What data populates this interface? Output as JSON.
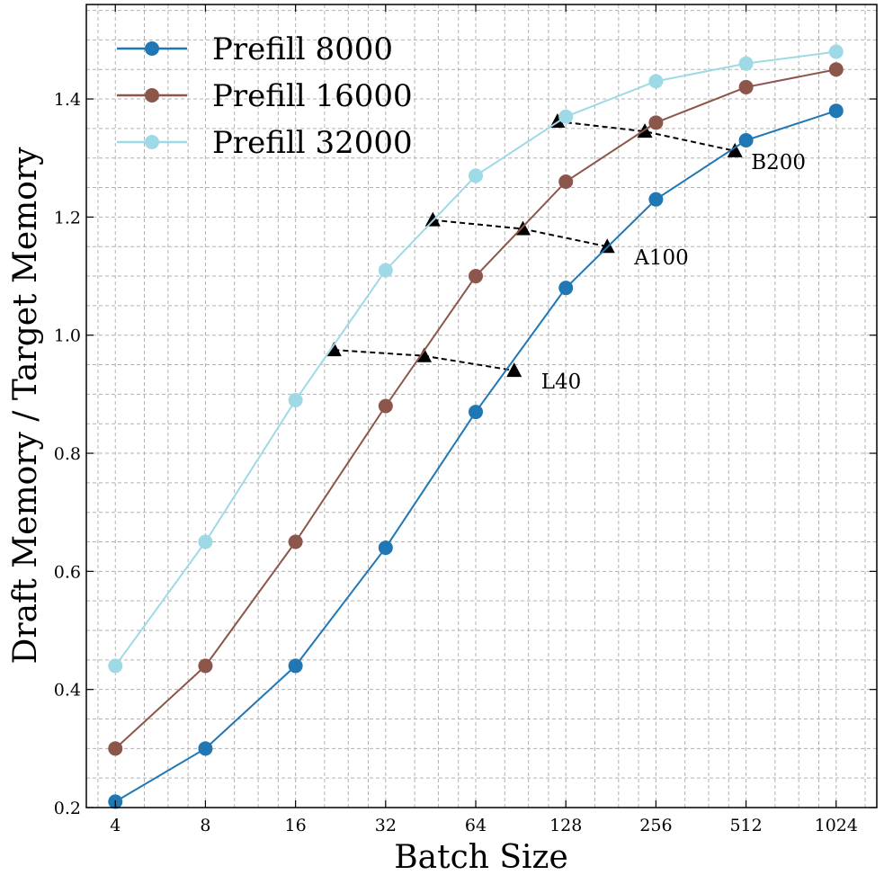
{
  "chart_data": {
    "type": "line",
    "xlabel": "Batch Size",
    "ylabel": "Draft Memory / Target Memory",
    "x_scale": "log2",
    "x_ticks": [
      4,
      8,
      16,
      32,
      64,
      128,
      256,
      512,
      1024
    ],
    "x_tick_labels": [
      "4",
      "8",
      "16",
      "32",
      "64",
      "128",
      "256",
      "512",
      "1024"
    ],
    "xlim": [
      3.2,
      1400
    ],
    "ylim": [
      0.2,
      1.56
    ],
    "y_ticks": [
      0.2,
      0.4,
      0.6,
      0.8,
      1.0,
      1.2,
      1.4
    ],
    "y_tick_labels": [
      "0.2",
      "0.4",
      "0.6",
      "0.8",
      "1.0",
      "1.2",
      "1.4"
    ],
    "grid": true,
    "legend_position": "upper-left",
    "x": [
      4,
      8,
      16,
      32,
      64,
      128,
      256,
      512,
      1024
    ],
    "series": [
      {
        "name": "Prefill 8000",
        "color": "#1f77b4",
        "values": [
          0.21,
          0.3,
          0.44,
          0.64,
          0.87,
          1.08,
          1.23,
          1.33,
          1.38
        ]
      },
      {
        "name": "Prefill 16000",
        "color": "#8c564b",
        "values": [
          0.3,
          0.44,
          0.65,
          0.88,
          1.1,
          1.26,
          1.36,
          1.42,
          1.45
        ]
      },
      {
        "name": "Prefill 32000",
        "color": "#9edae5",
        "values": [
          0.44,
          0.65,
          0.89,
          1.11,
          1.27,
          1.37,
          1.43,
          1.46,
          1.48
        ]
      }
    ],
    "gpu_lines": [
      {
        "label": "L40",
        "points": [
          [
            21.5,
            0.975
          ],
          [
            43,
            0.965
          ],
          [
            86,
            0.94
          ]
        ]
      },
      {
        "label": "A100",
        "points": [
          [
            46,
            1.195
          ],
          [
            92,
            1.18
          ],
          [
            176,
            1.15
          ]
        ]
      },
      {
        "label": "B200",
        "points": [
          [
            120,
            1.362
          ],
          [
            235,
            1.345
          ],
          [
            470,
            1.312
          ]
        ]
      }
    ]
  }
}
